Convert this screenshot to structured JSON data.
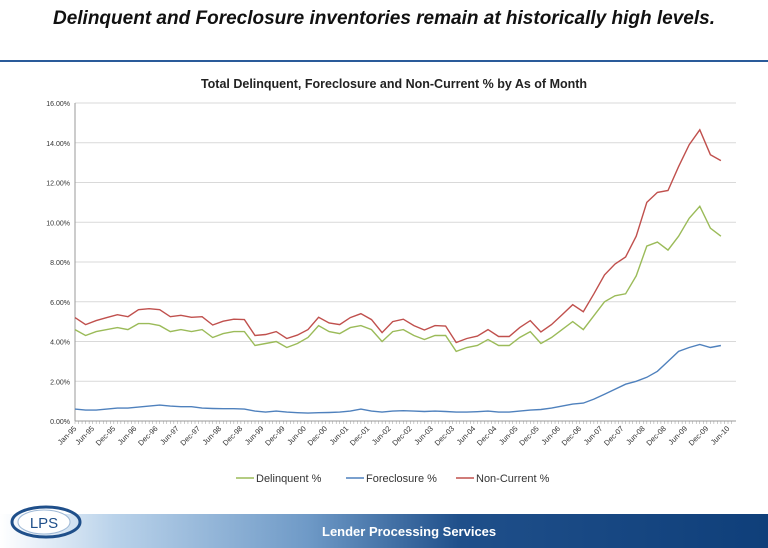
{
  "headline": "Delinquent and Foreclosure inventories remain at historically high levels.",
  "footer": {
    "company": "Lender Processing Services",
    "logo_text": "LPS"
  },
  "chart_data": {
    "type": "line",
    "title": "Total Delinquent, Foreclosure and Non-Current % by As of Month",
    "xlabel": "",
    "ylabel": "",
    "ylim": [
      0,
      16
    ],
    "y_ticks": [
      "0.00%",
      "2.00%",
      "4.00%",
      "6.00%",
      "8.00%",
      "10.00%",
      "12.00%",
      "14.00%",
      "16.00%"
    ],
    "x_tick_labels": [
      "Jan-95",
      "Jun-95",
      "Dec-95",
      "Jun-96",
      "Dec-96",
      "Jun-97",
      "Dec-97",
      "Jun-98",
      "Dec-98",
      "Jun-99",
      "Dec-99",
      "Jun-00",
      "Dec-00",
      "Jun-01",
      "Dec-01",
      "Jun-02",
      "Dec-02",
      "Jun-03",
      "Dec-03",
      "Jun-04",
      "Dec-04",
      "Jun-05",
      "Dec-05",
      "Jun-06",
      "Dec-06",
      "Jun-07",
      "Dec-07",
      "Jun-08",
      "Dec-08",
      "Jun-09",
      "Dec-09",
      "Jun-10"
    ],
    "x_note": "quarterly samples starting Jan-95",
    "legend_position": "bottom",
    "series": [
      {
        "name": "Delinquent %",
        "color": "#9bbb59",
        "values": [
          4.6,
          4.3,
          4.5,
          4.6,
          4.7,
          4.6,
          4.9,
          4.9,
          4.8,
          4.5,
          4.6,
          4.5,
          4.6,
          4.2,
          4.4,
          4.5,
          4.5,
          3.8,
          3.9,
          4.0,
          3.7,
          3.9,
          4.2,
          4.8,
          4.5,
          4.4,
          4.7,
          4.8,
          4.6,
          4.0,
          4.5,
          4.6,
          4.3,
          4.1,
          4.3,
          4.3,
          3.5,
          3.7,
          3.8,
          4.1,
          3.8,
          3.8,
          4.2,
          4.5,
          3.9,
          4.2,
          4.6,
          5.0,
          4.6,
          5.3,
          6.0,
          6.3,
          6.4,
          7.3,
          8.8,
          9.0,
          8.6,
          9.3,
          10.2,
          10.8,
          9.7,
          9.3
        ]
      },
      {
        "name": "Foreclosure %",
        "color": "#4f81bd",
        "values": [
          0.6,
          0.55,
          0.55,
          0.6,
          0.65,
          0.65,
          0.7,
          0.75,
          0.8,
          0.75,
          0.72,
          0.72,
          0.65,
          0.63,
          0.62,
          0.62,
          0.6,
          0.5,
          0.45,
          0.5,
          0.45,
          0.42,
          0.4,
          0.42,
          0.43,
          0.45,
          0.5,
          0.6,
          0.5,
          0.45,
          0.5,
          0.52,
          0.5,
          0.48,
          0.5,
          0.48,
          0.45,
          0.45,
          0.47,
          0.5,
          0.45,
          0.45,
          0.5,
          0.55,
          0.58,
          0.65,
          0.75,
          0.85,
          0.9,
          1.1,
          1.35,
          1.6,
          1.85,
          2.0,
          2.2,
          2.5,
          3.0,
          3.5,
          3.7,
          3.85,
          3.7,
          3.8
        ]
      },
      {
        "name": "Non-Current %",
        "color": "#c0504d",
        "values": [
          5.2,
          4.85,
          5.05,
          5.2,
          5.35,
          5.25,
          5.6,
          5.65,
          5.6,
          5.25,
          5.32,
          5.22,
          5.25,
          4.83,
          5.02,
          5.12,
          5.1,
          4.3,
          4.35,
          4.5,
          4.15,
          4.32,
          4.6,
          5.22,
          4.93,
          4.85,
          5.2,
          5.4,
          5.1,
          4.45,
          5.0,
          5.12,
          4.8,
          4.58,
          4.8,
          4.78,
          3.95,
          4.15,
          4.27,
          4.6,
          4.25,
          4.25,
          4.7,
          5.05,
          4.48,
          4.85,
          5.35,
          5.85,
          5.5,
          6.4,
          7.35,
          7.9,
          8.25,
          9.3,
          11.0,
          11.5,
          11.6,
          12.8,
          13.9,
          14.65,
          13.4,
          13.1
        ]
      }
    ]
  }
}
